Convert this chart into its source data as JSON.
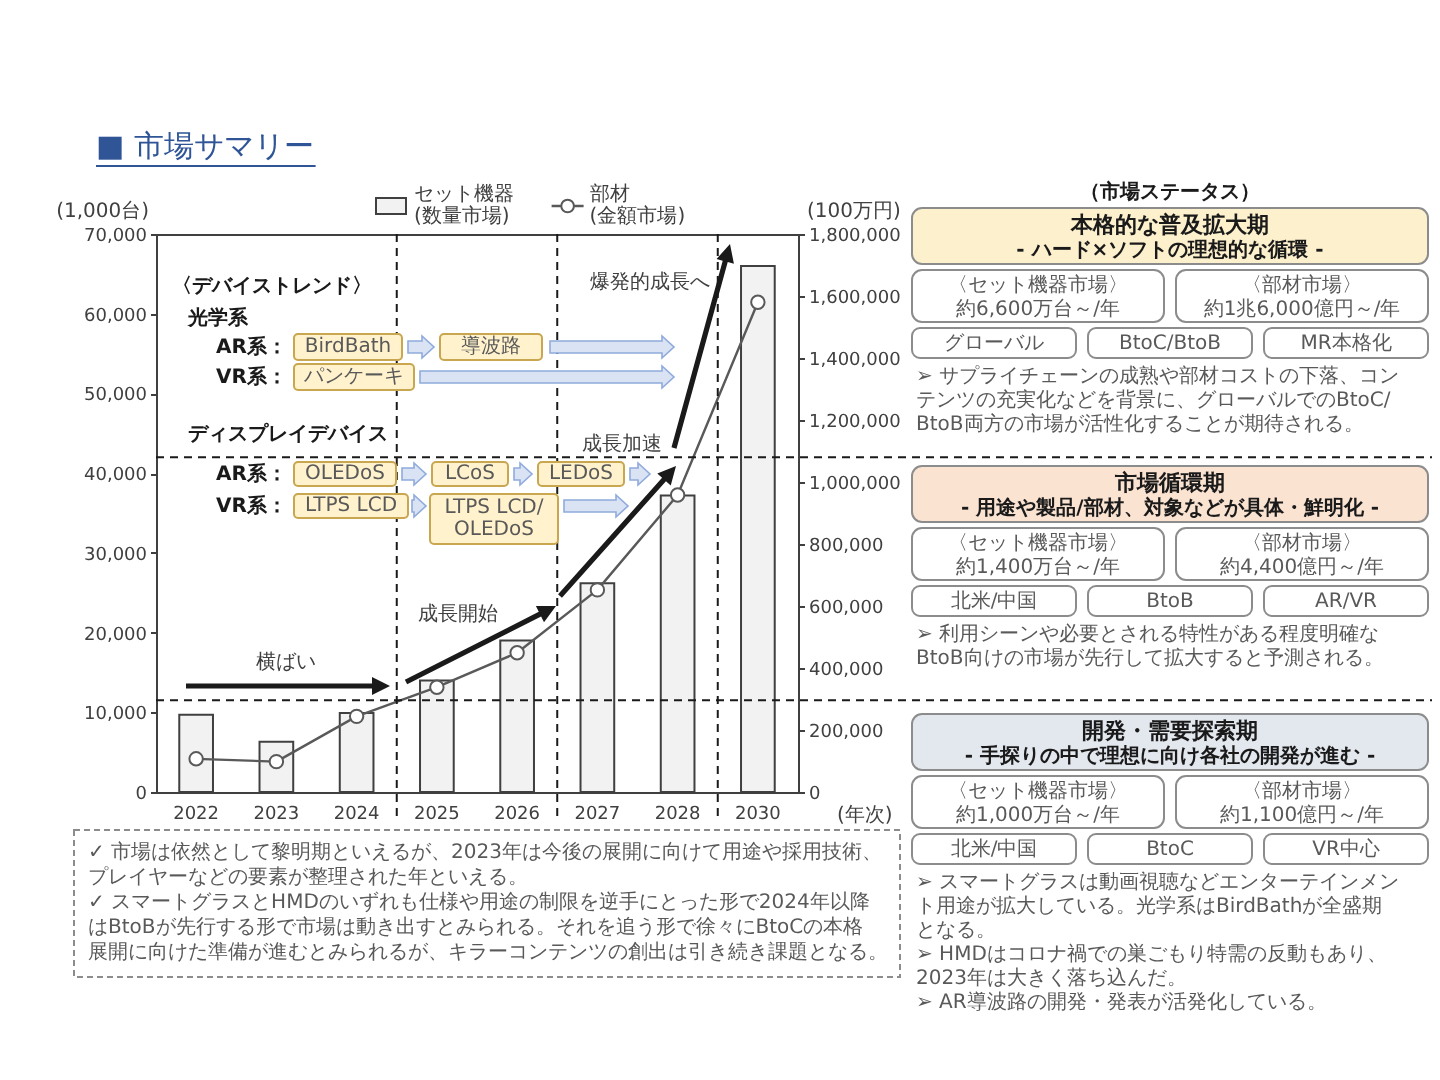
{
  "chart_data": [
    {
      "type": "bar",
      "title": "■ 市場サマリー",
      "categories": [
        "2022",
        "2023",
        "2024",
        "2025",
        "2026",
        "2027",
        "2028",
        "2030"
      ],
      "series": [
        {
          "name": "セット機器 (数量市場)",
          "type": "bar",
          "color": "#f2f2f2",
          "values": [
            9700,
            6300,
            9900,
            14000,
            19000,
            26200,
            37200,
            66000
          ]
        },
        {
          "name": "部材 (金額市場)",
          "type": "line",
          "axis": "y2",
          "color": "#595959",
          "values": [
            107000,
            98000,
            244000,
            338000,
            449000,
            652000,
            958000,
            1580000
          ]
        }
      ],
      "ylim": [
        0,
        70000
      ],
      "yticks": [
        0,
        {
          "value": 10000,
          "label": "10,000"
        },
        {
          "value": 20000,
          "label": "20,000"
        },
        {
          "value": 30000,
          "label": "30,000"
        },
        {
          "value": 40000,
          "label": "40,000"
        },
        {
          "value": 50000,
          "label": "50,000"
        },
        {
          "value": 60000,
          "label": "60,000"
        },
        {
          "value": 70000,
          "label": "70,000"
        }
      ],
      "y2lim": [
        0,
        1800000
      ],
      "y2ticks": [
        0,
        {
          "value": 200000,
          "label": "200,000"
        },
        {
          "value": 400000,
          "label": "400,000"
        },
        {
          "value": 600000,
          "label": "600,000"
        },
        {
          "value": 800000,
          "label": "800,000"
        },
        {
          "value": 1000000,
          "label": "1,000,000"
        },
        {
          "value": 1200000,
          "label": "1,200,000"
        },
        {
          "value": 1400000,
          "label": "1,400,000"
        },
        {
          "value": 1600000,
          "label": "1,600,000"
        },
        {
          "value": 1800000,
          "label": "1,800,000"
        }
      ],
      "ylabel": "(1,000台)",
      "y2label": "(100万円)",
      "xlabel": "(年次)",
      "legend": "top",
      "marker": "circle",
      "ref_lines": [
        {
          "axis": "y",
          "value": 11500,
          "line_style": "dashed"
        },
        {
          "axis": "y",
          "value": 42000,
          "line_style": "dashed"
        }
      ],
      "annotations": [
        "横ばい",
        "成長開始",
        "成長加速",
        "爆発的成長へ",
        "〈デバイストレンド〉",
        "光学系",
        "AR系：",
        "BirdBath",
        "導波路",
        "VR系：",
        "パンケーキ",
        "ディスプレイデバイス",
        "AR系：",
        "OLEDoS",
        "LCoS",
        "LEDoS",
        "VR系：",
        "LTPS LCD",
        "LTPS LCD/OLEDoS"
      ]
    },
    {
      "type": "other",
      "title": "（市場ステータス）"
    },
    {
      "type": "other",
      "title": "本格的な普及拡大期",
      "subtitle": "- ハード×ソフトの理想的な循環 -",
      "annotations": [
        "〈セット機器市場〉",
        "約6,600万台～/年",
        "〈部材市場〉",
        "約1兆6,000億円～/年",
        "グローバル",
        "BtoC/BtoB",
        "MR本格化",
        "➢ サプライチェーンの成熟や部材コストの下落、コンテンツの充実化などを背景に、グローバルでのBtoC/BtoB両方の市場が活性化することが期待される。"
      ]
    },
    {
      "type": "other",
      "title": "市場循環期",
      "subtitle": "- 用途や製品/部材、対象などが具体・鮮明化 -",
      "annotations": [
        "〈セット機器市場〉",
        "約1,400万台～/年",
        "〈部材市場〉",
        "約4,400億円～/年",
        "北米/中国",
        "BtoB",
        "AR/VR",
        "➢ 利用シーンや必要とされる特性がある程度明確なBtoB向けの市場が先行して拡大すると予測される。"
      ]
    },
    {
      "type": "other",
      "title": "開発・需要探索期",
      "subtitle": "- 手探りの中で理想に向け各社の開発が進む -",
      "annotations": [
        "〈セット機器市場〉",
        "約1,000万台～/年",
        "〈部材市場〉",
        "約1,100億円～/年",
        "北米/中国",
        "BtoC",
        "VR中心",
        "➢ スマートグラスは動画視聴などエンターテインメント用途が拡大している。光学系はBirdBathが全盛期となる。",
        "➢ HMDはコロナ禍での巣ごもり特需の反動もあり、2023年は大きく落ち込んだ。",
        "➢ AR導波路の開発・発表が活発化している。"
      ]
    },
    {
      "type": "other",
      "annotations": [
        "✓ 市場は依然として黎明期といえるが、2023年は今後の展開に向けて用途や採用技術、プレイヤーなどの要素が整理された年といえる。",
        "✓ スマートグラスとHMDのいずれも仕様や用途の制限を逆手にとった形で2024年以降はBtoBが先行する形で市場は動き出すとみられる。それを追う形で徐々にBtoCの本格展開に向けた準備が進むとみられるが、キラーコンテンツの創出は引き続き課題となる。"
      ]
    }
  ]
}
